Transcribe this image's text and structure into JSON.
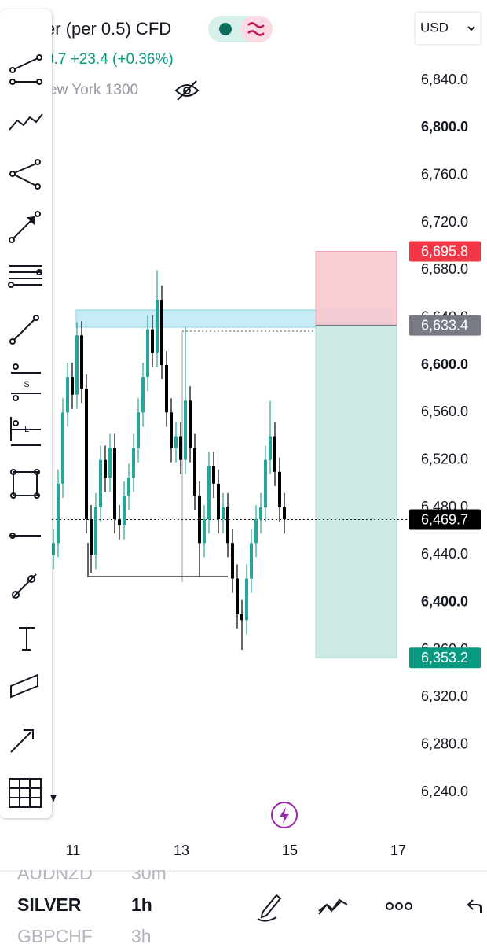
{
  "header": {
    "symbol": "er (per 0.5) CFD",
    "change": "0.7 +23.4 (+0.36%)",
    "session": "ew York 1300",
    "currency": "USD"
  },
  "chart_data": {
    "type": "candlestick",
    "up_color": "#26a69a",
    "down_color": "#000000",
    "ylim": [
      6240,
      6840
    ],
    "yticks": [
      {
        "value": 6840,
        "label": "6,840.0"
      },
      {
        "value": 6800,
        "label": "6,800.0"
      },
      {
        "value": 6760,
        "label": "6,760.0"
      },
      {
        "value": 6720,
        "label": "6,720.0"
      },
      {
        "value": 6680,
        "label": "6,680.0"
      },
      {
        "value": 6640,
        "label": "6,640.0"
      },
      {
        "value": 6600,
        "label": "6,600.0"
      },
      {
        "value": 6560,
        "label": "6,560.0"
      },
      {
        "value": 6520,
        "label": "6,520.0"
      },
      {
        "value": 6480,
        "label": "6,480.0"
      },
      {
        "value": 6440,
        "label": "6,440.0"
      },
      {
        "value": 6400,
        "label": "6,400.0"
      },
      {
        "value": 6360,
        "label": "6,360.0"
      },
      {
        "value": 6320,
        "label": "6,320.0"
      },
      {
        "value": 6280,
        "label": "6,280.0"
      },
      {
        "value": 6240,
        "label": "6,240.0"
      }
    ],
    "xticks": [
      11,
      13,
      15,
      17
    ],
    "open": [
      6440,
      6450,
      6500,
      6560,
      6590,
      6575,
      6625,
      6580,
      6470,
      6440,
      6480,
      6520,
      6505,
      6530,
      6470,
      6465,
      6490,
      6505,
      6530,
      6560,
      6590,
      6630,
      6610,
      6655,
      6600,
      6560,
      6530,
      6540,
      6520,
      6570,
      6530,
      6490,
      6450,
      6470,
      6515,
      6500,
      6470,
      6480,
      6450,
      6420,
      6390,
      6385,
      6420,
      6450,
      6470,
      6480,
      6520,
      6540,
      6510,
      6480
    ],
    "high": [
      6462,
      6512,
      6572,
      6602,
      6602,
      6636,
      6637,
      6592,
      6482,
      6492,
      6532,
      6532,
      6542,
      6542,
      6482,
      6502,
      6517,
      6542,
      6572,
      6602,
      6642,
      6642,
      6680,
      6667,
      6612,
      6572,
      6552,
      6552,
      6632,
      6582,
      6542,
      6502,
      6482,
      6527,
      6527,
      6512,
      6492,
      6492,
      6462,
      6432,
      6402,
      6432,
      6462,
      6482,
      6492,
      6532,
      6570,
      6552,
      6522,
      6492
    ],
    "low": [
      6428,
      6438,
      6488,
      6548,
      6563,
      6563,
      6568,
      6458,
      6425,
      6428,
      6468,
      6493,
      6493,
      6458,
      6453,
      6453,
      6478,
      6493,
      6518,
      6548,
      6578,
      6598,
      6598,
      6588,
      6548,
      6518,
      6518,
      6508,
      6508,
      6518,
      6478,
      6422,
      6438,
      6458,
      6488,
      6458,
      6458,
      6438,
      6408,
      6378,
      6360,
      6373,
      6408,
      6438,
      6458,
      6468,
      6508,
      6498,
      6468,
      6458
    ],
    "close": [
      6450,
      6500,
      6560,
      6590,
      6575,
      6625,
      6580,
      6470,
      6440,
      6480,
      6520,
      6505,
      6530,
      6470,
      6465,
      6490,
      6505,
      6530,
      6560,
      6590,
      6630,
      6610,
      6655,
      6600,
      6560,
      6530,
      6540,
      6520,
      6570,
      6530,
      6490,
      6450,
      6470,
      6515,
      6500,
      6470,
      6480,
      6450,
      6420,
      6390,
      6385,
      6420,
      6450,
      6470,
      6480,
      6520,
      6540,
      6510,
      6480,
      6470
    ],
    "price_labels": [
      {
        "value": 6695.8,
        "label": "6,695.8",
        "color": "#f23645"
      },
      {
        "value": 6633.4,
        "label": "6,633.4",
        "color": "#787b86"
      },
      {
        "value": 6469.7,
        "label": "6,469.7",
        "color": "#000000"
      },
      {
        "value": 6353.2,
        "label": "6,353.2",
        "color": "#089981"
      }
    ]
  },
  "watchlist": [
    {
      "symbol": "AUDNZD",
      "interval": "30m"
    },
    {
      "symbol": "SILVER",
      "interval": "1h"
    },
    {
      "symbol": "GBPCHF",
      "interval": "3h"
    }
  ]
}
